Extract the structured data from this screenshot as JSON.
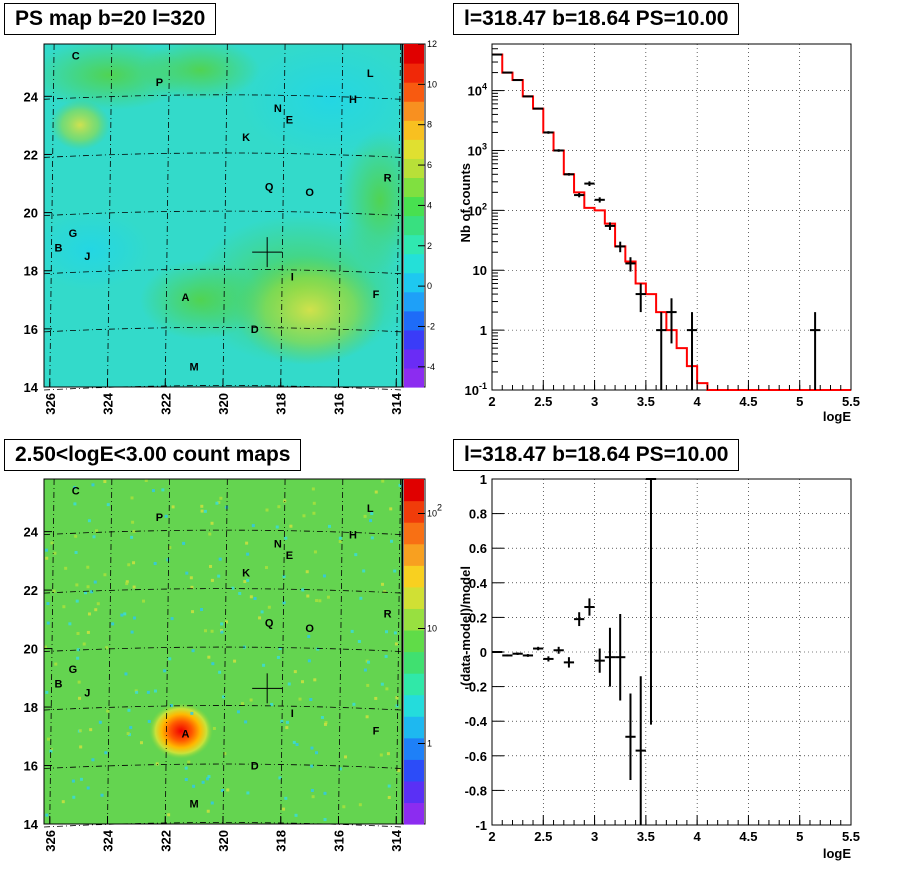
{
  "panels": {
    "top_left_title": "PS map b=20 l=320",
    "top_right_title": "l=318.47 b=18.64 PS=10.00",
    "bottom_left_title": "2.50<logE<3.00 count maps",
    "bottom_right_title": "l=318.47 b=18.64 PS=10.00"
  },
  "colors": {
    "frame": "#000000",
    "fit_line": "#ff0000",
    "data": "#000000"
  },
  "chart_data": [
    {
      "type": "heatmap",
      "title": "PS map b=20 l=320",
      "x_ticks": [
        "326",
        "324",
        "322",
        "320",
        "318",
        "316",
        "314"
      ],
      "y_ticks": [
        "14",
        "16",
        "18",
        "20",
        "22",
        "24"
      ],
      "xlim": [
        326.2,
        313.8
      ],
      "ylim": [
        14,
        25.8
      ],
      "colorbar_ticks": [
        "-4",
        "-2",
        "0",
        "2",
        "4",
        "6",
        "8",
        "10",
        "12"
      ],
      "colorbar_range": [
        -5,
        12
      ],
      "marker": {
        "l": 318.47,
        "b": 18.64
      },
      "sources": [
        {
          "label": "C",
          "l": 325.1,
          "b": 25.4
        },
        {
          "label": "P",
          "l": 322.2,
          "b": 24.5
        },
        {
          "label": "L",
          "l": 314.9,
          "b": 24.8
        },
        {
          "label": "H",
          "l": 315.5,
          "b": 23.9
        },
        {
          "label": "N",
          "l": 318.1,
          "b": 23.6
        },
        {
          "label": "E",
          "l": 317.7,
          "b": 23.2
        },
        {
          "label": "K",
          "l": 319.2,
          "b": 22.6
        },
        {
          "label": "R",
          "l": 314.3,
          "b": 21.2
        },
        {
          "label": "Q",
          "l": 318.4,
          "b": 20.9
        },
        {
          "label": "O",
          "l": 317.0,
          "b": 20.7
        },
        {
          "label": "G",
          "l": 325.2,
          "b": 19.3
        },
        {
          "label": "B",
          "l": 325.7,
          "b": 18.8
        },
        {
          "label": "J",
          "l": 324.7,
          "b": 18.5
        },
        {
          "label": "I",
          "l": 317.6,
          "b": 17.8
        },
        {
          "label": "A",
          "l": 321.3,
          "b": 17.1
        },
        {
          "label": "F",
          "l": 314.7,
          "b": 17.2
        },
        {
          "label": "D",
          "l": 318.9,
          "b": 16.0
        },
        {
          "label": "M",
          "l": 321.0,
          "b": 14.7
        }
      ]
    },
    {
      "type": "line",
      "title": "l=318.47 b=18.64 PS=10.00",
      "xlabel": "logE",
      "ylabel": "Nb of counts",
      "x_ticks": [
        "2",
        "2.5",
        "3",
        "3.5",
        "4",
        "4.5",
        "5",
        "5.5"
      ],
      "y_ticks": [
        "10^-1",
        "1",
        "10",
        "10^2",
        "10^3",
        "10^4"
      ],
      "xlim": [
        2,
        5.5
      ],
      "ylim": [
        0.1,
        60000
      ],
      "y_scale": "log",
      "grid": true,
      "model_steps": [
        {
          "x0": 2.0,
          "x1": 2.1,
          "y": 40000
        },
        {
          "x0": 2.1,
          "x1": 2.2,
          "y": 20000
        },
        {
          "x0": 2.2,
          "x1": 2.3,
          "y": 15000
        },
        {
          "x0": 2.3,
          "x1": 2.4,
          "y": 8000
        },
        {
          "x0": 2.4,
          "x1": 2.5,
          "y": 5000
        },
        {
          "x0": 2.5,
          "x1": 2.6,
          "y": 2000
        },
        {
          "x0": 2.6,
          "x1": 2.7,
          "y": 1000
        },
        {
          "x0": 2.7,
          "x1": 2.8,
          "y": 400
        },
        {
          "x0": 2.8,
          "x1": 2.9,
          "y": 200
        },
        {
          "x0": 2.9,
          "x1": 3.0,
          "y": 110
        },
        {
          "x0": 3.0,
          "x1": 3.1,
          "y": 100
        },
        {
          "x0": 3.1,
          "x1": 3.2,
          "y": 60
        },
        {
          "x0": 3.2,
          "x1": 3.3,
          "y": 25
        },
        {
          "x0": 3.3,
          "x1": 3.4,
          "y": 14
        },
        {
          "x0": 3.4,
          "x1": 3.5,
          "y": 6
        },
        {
          "x0": 3.5,
          "x1": 3.6,
          "y": 4
        },
        {
          "x0": 3.6,
          "x1": 3.7,
          "y": 2
        },
        {
          "x0": 3.7,
          "x1": 3.8,
          "y": 1
        },
        {
          "x0": 3.8,
          "x1": 3.9,
          "y": 0.5
        },
        {
          "x0": 3.9,
          "x1": 4.0,
          "y": 0.25
        },
        {
          "x0": 4.0,
          "x1": 4.1,
          "y": 0.13
        },
        {
          "x0": 4.1,
          "x1": 5.5,
          "y": 0.1
        }
      ],
      "points": [
        {
          "x": 2.05,
          "y": 40000,
          "lo": 39600,
          "hi": 40400
        },
        {
          "x": 2.15,
          "y": 20000,
          "lo": 19700,
          "hi": 20300
        },
        {
          "x": 2.25,
          "y": 15000,
          "lo": 14750,
          "hi": 15250
        },
        {
          "x": 2.35,
          "y": 8000,
          "lo": 7800,
          "hi": 8200
        },
        {
          "x": 2.45,
          "y": 5000,
          "lo": 4850,
          "hi": 5150
        },
        {
          "x": 2.55,
          "y": 2000,
          "lo": 1900,
          "hi": 2100
        },
        {
          "x": 2.65,
          "y": 1000,
          "lo": 950,
          "hi": 1050
        },
        {
          "x": 2.75,
          "y": 400,
          "lo": 380,
          "hi": 420
        },
        {
          "x": 2.85,
          "y": 180,
          "lo": 165,
          "hi": 195
        },
        {
          "x": 2.95,
          "y": 280,
          "lo": 255,
          "hi": 305
        },
        {
          "x": 3.05,
          "y": 150,
          "lo": 135,
          "hi": 165
        },
        {
          "x": 3.15,
          "y": 55,
          "lo": 47,
          "hi": 63
        },
        {
          "x": 3.25,
          "y": 25,
          "lo": 20,
          "hi": 30
        },
        {
          "x": 3.35,
          "y": 13,
          "lo": 9.5,
          "hi": 16.5
        },
        {
          "x": 3.45,
          "y": 4,
          "lo": 2,
          "hi": 6
        },
        {
          "x": 3.65,
          "y": 1,
          "lo": 0.1,
          "hi": 2
        },
        {
          "x": 3.75,
          "y": 2,
          "lo": 0.6,
          "hi": 3.4
        },
        {
          "x": 3.95,
          "y": 1,
          "lo": 0.1,
          "hi": 2
        },
        {
          "x": 5.15,
          "y": 1,
          "lo": 0.1,
          "hi": 2
        }
      ]
    },
    {
      "type": "heatmap",
      "title": "2.50<logE<3.00 count maps",
      "x_ticks": [
        "326",
        "324",
        "322",
        "320",
        "318",
        "316",
        "314"
      ],
      "y_ticks": [
        "14",
        "16",
        "18",
        "20",
        "22",
        "24"
      ],
      "xlim": [
        326.2,
        313.8
      ],
      "ylim": [
        14,
        25.8
      ],
      "colorbar_ticks": [
        "1",
        "10",
        "10^2"
      ],
      "colorbar_scale": "log",
      "peak": {
        "l": 321.3,
        "b": 17.2
      },
      "marker": {
        "l": 318.47,
        "b": 18.64
      }
    },
    {
      "type": "scatter",
      "title": "l=318.47 b=18.64 PS=10.00",
      "xlabel": "logE",
      "ylabel": "(data-model)/model",
      "x_ticks": [
        "2",
        "2.5",
        "3",
        "3.5",
        "4",
        "4.5",
        "5",
        "5.5"
      ],
      "y_ticks": [
        "-1",
        "-0.8",
        "-0.6",
        "-0.4",
        "-0.2",
        "0",
        "0.2",
        "0.4",
        "0.6",
        "0.8",
        "1"
      ],
      "xlim": [
        2,
        5.5
      ],
      "ylim": [
        -1,
        1
      ],
      "grid": true,
      "points": [
        {
          "x": 2.05,
          "y": 0.0,
          "err": 0.005
        },
        {
          "x": 2.15,
          "y": -0.02,
          "err": 0.006
        },
        {
          "x": 2.25,
          "y": -0.01,
          "err": 0.007
        },
        {
          "x": 2.35,
          "y": -0.02,
          "err": 0.008
        },
        {
          "x": 2.45,
          "y": 0.02,
          "err": 0.01
        },
        {
          "x": 2.55,
          "y": -0.04,
          "err": 0.015
        },
        {
          "x": 2.65,
          "y": 0.01,
          "err": 0.02
        },
        {
          "x": 2.75,
          "y": -0.06,
          "err": 0.03
        },
        {
          "x": 2.85,
          "y": 0.19,
          "err": 0.04
        },
        {
          "x": 2.95,
          "y": 0.26,
          "err": 0.05
        },
        {
          "x": 3.05,
          "y": -0.05,
          "err": 0.07
        },
        {
          "x": 3.15,
          "y": -0.03,
          "err": 0.17
        },
        {
          "x": 3.25,
          "y": -0.03,
          "err": 0.25
        },
        {
          "x": 3.35,
          "y": -0.49,
          "err": 0.25
        },
        {
          "x": 3.45,
          "y": -0.57,
          "err": 0.43
        },
        {
          "x": 3.55,
          "y": 1.0,
          "err": 1.42
        }
      ]
    }
  ]
}
